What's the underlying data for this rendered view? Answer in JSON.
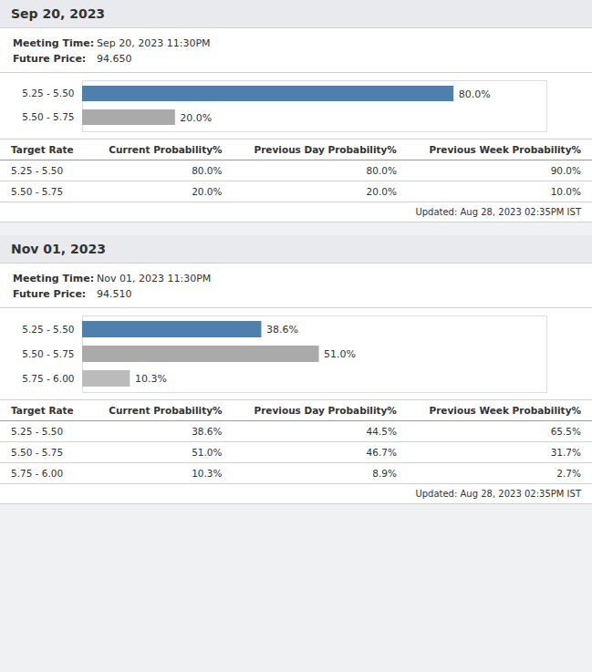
{
  "chart_data": [
    {
      "type": "bar",
      "orientation": "horizontal",
      "title": "Sep 20, 2023",
      "categories": [
        "5.25 - 5.50",
        "5.50 - 5.75"
      ],
      "values": [
        80.0,
        20.0
      ],
      "value_labels": [
        "80.0%",
        "20.0%"
      ],
      "colors": [
        "#4e7fad",
        "#aaaaaa"
      ],
      "data_labels": true,
      "xlim": [
        0,
        100
      ],
      "tick_labels": "y",
      "grid": false,
      "annotations": [
        [
          "Meeting Time:",
          "Sep 20, 2023 11:30PM"
        ],
        [
          "Future Price:",
          "94.650"
        ],
        [
          "Updated: Aug 28, 2023 02:35PM IST"
        ]
      ],
      "table": {
        "columns": [
          "Target Rate",
          "Current Probability%",
          "Previous Day Probability%",
          "Previous Week Probability%"
        ],
        "rows": [
          [
            "5.25 - 5.50",
            "80.0%",
            "80.0%",
            "90.0%"
          ],
          [
            "5.50 - 5.75",
            "20.0%",
            "20.0%",
            "10.0%"
          ]
        ]
      }
    },
    {
      "type": "bar",
      "orientation": "horizontal",
      "title": "Nov 01, 2023",
      "categories": [
        "5.25 - 5.50",
        "5.50 - 5.75",
        "5.75 - 6.00"
      ],
      "values": [
        38.6,
        51.0,
        10.3
      ],
      "value_labels": [
        "38.6%",
        "51.0%",
        "10.3%"
      ],
      "colors": [
        "#4e7fad",
        "#aaaaaa",
        "#bbbbbb"
      ],
      "data_labels": true,
      "xlim": [
        0,
        100
      ],
      "tick_labels": "y",
      "grid": false,
      "annotations": [
        [
          "Meeting Time:",
          "Nov 01, 2023 11:30PM"
        ],
        [
          "Future Price:",
          "94.510"
        ],
        [
          "Updated: Aug 28, 2023 02:35PM IST"
        ]
      ],
      "table": {
        "columns": [
          "Target Rate",
          "Current Probability%",
          "Previous Day Probability%",
          "Previous Week Probability%"
        ],
        "rows": [
          [
            "5.25 - 5.50",
            "38.6%",
            "44.5%",
            "65.5%"
          ],
          [
            "5.50 - 5.75",
            "51.0%",
            "46.7%",
            "31.7%"
          ],
          [
            "5.75 - 6.00",
            "10.3%",
            "8.9%",
            "2.7%"
          ]
        ]
      }
    }
  ]
}
